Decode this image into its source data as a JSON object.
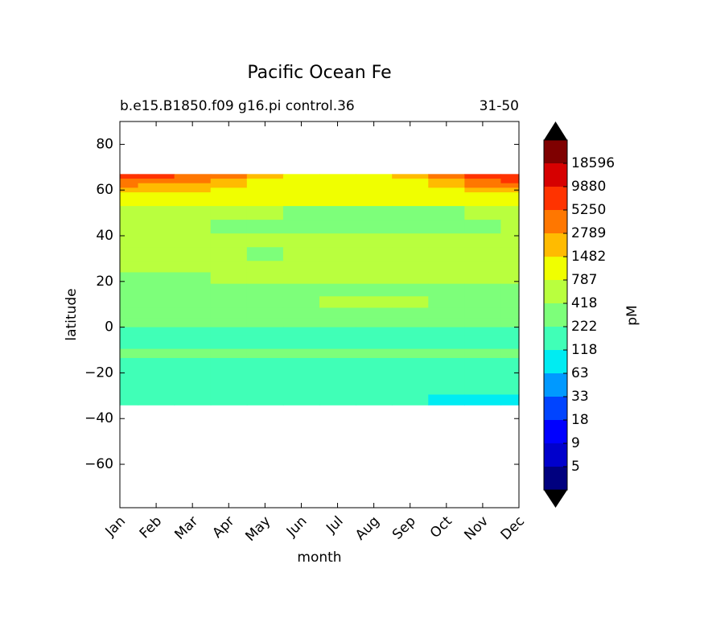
{
  "chart_data": {
    "type": "contourf",
    "title": "Pacific Ocean Fe",
    "subtitle_left": "b.e15.B1850.f09 g16.pi control.36",
    "subtitle_right": "31-50",
    "xlabel": "month",
    "ylabel": "latitude",
    "colorbar_label": "pM",
    "categories": [
      "Jan",
      "Feb",
      "Mar",
      "Apr",
      "May",
      "Jun",
      "Jul",
      "Aug",
      "Sep",
      "Oct",
      "Nov",
      "Dec"
    ],
    "ylim": [
      -79,
      90
    ],
    "yticks": [
      {
        "value": -60,
        "label": "−60"
      },
      {
        "value": -40,
        "label": "−40"
      },
      {
        "value": -20,
        "label": "−20"
      },
      0,
      20,
      40,
      60,
      80
    ],
    "levels": [
      5,
      9,
      18,
      33,
      63,
      118,
      222,
      418,
      787,
      1482,
      2789,
      5250,
      9880,
      18596
    ],
    "colors": [
      "#00007f",
      "#0000cc",
      "#0000ff",
      "#0044ff",
      "#0099ff",
      "#00ecf2",
      "#40ffb7",
      "#7dff7a",
      "#b9ff3e",
      "#f0ff00",
      "#ffbb00",
      "#ff7700",
      "#ff3300",
      "#d60000",
      "#7f0000"
    ],
    "lat": [
      66,
      64,
      62,
      60,
      58,
      56,
      50,
      44,
      38,
      32,
      26,
      22,
      16,
      11,
      6,
      2,
      -2,
      -5,
      -8,
      -11,
      -16,
      -22,
      -28,
      -31,
      -33
    ],
    "z": [
      [
        6000,
        6000,
        5000,
        3000,
        2000,
        1000,
        1000,
        1000,
        1500,
        3000,
        6000,
        7000
      ],
      [
        4000,
        3500,
        3000,
        2000,
        1200,
        1000,
        1000,
        1000,
        1000,
        2000,
        4000,
        6000
      ],
      [
        3000,
        2500,
        2000,
        1500,
        1000,
        900,
        900,
        900,
        900,
        1500,
        3000,
        3500
      ],
      [
        2000,
        1800,
        1500,
        1200,
        1000,
        900,
        900,
        900,
        900,
        1200,
        1800,
        2000
      ],
      [
        1000,
        1000,
        1000,
        1000,
        900,
        900,
        900,
        900,
        900,
        1000,
        1000,
        1000
      ],
      [
        900,
        900,
        900,
        900,
        900,
        900,
        900,
        900,
        900,
        900,
        900,
        900
      ],
      [
        600,
        600,
        600,
        600,
        600,
        300,
        300,
        300,
        300,
        300,
        600,
        600
      ],
      [
        600,
        600,
        600,
        300,
        300,
        300,
        300,
        300,
        300,
        300,
        300,
        600
      ],
      [
        600,
        600,
        600,
        600,
        600,
        600,
        600,
        600,
        600,
        600,
        600,
        600
      ],
      [
        600,
        600,
        600,
        600,
        350,
        600,
        600,
        600,
        600,
        600,
        600,
        600
      ],
      [
        600,
        600,
        600,
        600,
        600,
        600,
        600,
        600,
        600,
        600,
        600,
        600
      ],
      [
        300,
        300,
        300,
        600,
        600,
        600,
        600,
        600,
        600,
        600,
        600,
        600
      ],
      [
        300,
        300,
        300,
        300,
        300,
        300,
        300,
        300,
        300,
        300,
        300,
        300
      ],
      [
        300,
        300,
        300,
        300,
        300,
        300,
        600,
        600,
        600,
        300,
        300,
        300
      ],
      [
        300,
        300,
        300,
        300,
        300,
        300,
        300,
        300,
        300,
        300,
        300,
        300
      ],
      [
        300,
        300,
        300,
        300,
        300,
        300,
        300,
        300,
        300,
        300,
        300,
        300
      ],
      [
        150,
        150,
        150,
        150,
        150,
        150,
        150,
        150,
        150,
        150,
        150,
        150
      ],
      [
        150,
        150,
        150,
        150,
        150,
        150,
        150,
        150,
        150,
        150,
        150,
        150
      ],
      [
        150,
        150,
        150,
        150,
        150,
        150,
        150,
        150,
        150,
        150,
        150,
        150
      ],
      [
        300,
        300,
        300,
        300,
        300,
        300,
        300,
        300,
        300,
        300,
        300,
        300
      ],
      [
        150,
        150,
        150,
        150,
        150,
        150,
        150,
        150,
        150,
        150,
        150,
        150
      ],
      [
        150,
        150,
        150,
        150,
        150,
        150,
        150,
        150,
        150,
        150,
        150,
        150
      ],
      [
        150,
        150,
        150,
        150,
        150,
        150,
        150,
        150,
        150,
        150,
        150,
        150
      ],
      [
        150,
        150,
        150,
        150,
        150,
        150,
        150,
        150,
        150,
        100,
        100,
        100
      ],
      [
        150,
        150,
        150,
        150,
        150,
        150,
        150,
        150,
        150,
        100,
        100,
        100
      ]
    ]
  }
}
